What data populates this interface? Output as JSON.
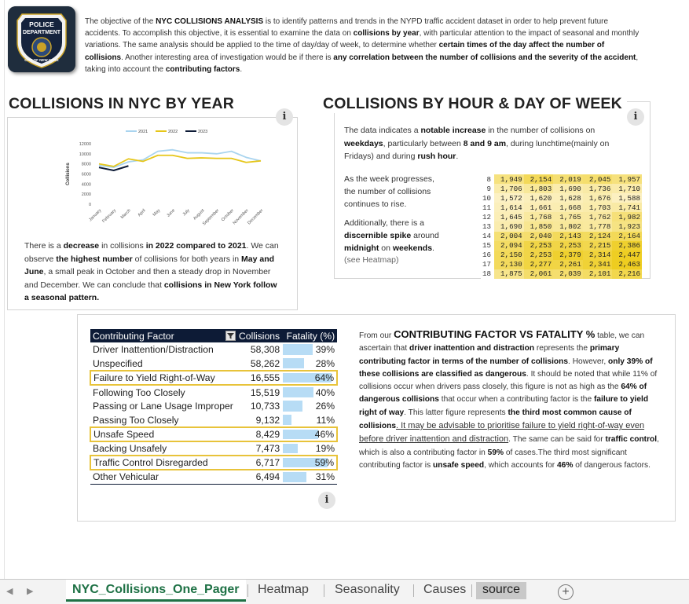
{
  "header": {
    "logo": {
      "line1": "POLICE",
      "line2": "DEPARTMENT",
      "line3": "CITY OF NEW YORK"
    },
    "intro_parts": [
      {
        "t": "The objective of the ",
        "b": false
      },
      {
        "t": "NYC COLLISIONS ANALYSIS",
        "b": true
      },
      {
        "t": " is to identify patterns and trends in the NYPD traffic accident dataset in order to help prevent future accidents. To accomplish this objective, it is essential to examine the data on ",
        "b": false
      },
      {
        "t": "collisions by year",
        "b": true
      },
      {
        "t": ", with particular attention to the impact of seasonal and monthly variations. The same analysis should be applied to the time of day/day of week, to determine whether ",
        "b": false
      },
      {
        "t": "certain times of the day affect the number of collisions",
        "b": true
      },
      {
        "t": ". Another interesting area of investigation would be if there is ",
        "b": false
      },
      {
        "t": "any correlation between the number of collisions and the severity of the accident",
        "b": true
      },
      {
        "t": ", taking into account the ",
        "b": false
      },
      {
        "t": "contributing factors",
        "b": true
      },
      {
        "t": ".",
        "b": false
      }
    ]
  },
  "year_section": {
    "title": "COLLISIONS IN NYC BY YEAR",
    "info": "i",
    "text_parts": [
      {
        "t": "There is a ",
        "b": false
      },
      {
        "t": "decrease",
        "b": true
      },
      {
        "t": " in collisions ",
        "b": false
      },
      {
        "t": "in 2022 compared to 2021",
        "b": true
      },
      {
        "t": ". We can observe ",
        "b": false
      },
      {
        "t": "the highest number",
        "b": true
      },
      {
        "t": " of collisions for both years in ",
        "b": false
      },
      {
        "t": "May and June",
        "b": true
      },
      {
        "t": ", a small peak in October and then a steady drop in November and December. We can conclude that ",
        "b": false
      },
      {
        "t": "collisions in New York follow a seasonal pattern.",
        "b": true
      }
    ]
  },
  "chart_data": {
    "type": "line",
    "title": "",
    "xlabel": "",
    "ylabel": "Collisions",
    "ylim": [
      0,
      12000
    ],
    "yticks": [
      "12000",
      "10000",
      "8000",
      "6000",
      "4000",
      "2000",
      "0"
    ],
    "categories": [
      "January",
      "February",
      "March",
      "April",
      "May",
      "June",
      "July",
      "August",
      "September",
      "October",
      "November",
      "December"
    ],
    "legend_position": "top",
    "series": [
      {
        "name": "2021",
        "color": "#a9d4ef",
        "values": [
          7700,
          7300,
          8400,
          8800,
          10500,
          10800,
          10200,
          10200,
          10000,
          10500,
          9300,
          8600
        ]
      },
      {
        "name": "2022",
        "color": "#e6c619",
        "values": [
          8000,
          7500,
          9000,
          8500,
          9700,
          9700,
          9100,
          9200,
          9100,
          9100,
          8300,
          8600
        ]
      },
      {
        "name": "2023",
        "color": "#0d1b36",
        "values": [
          7300,
          6700,
          7600,
          null,
          null,
          null,
          null,
          null,
          null,
          null,
          null,
          null
        ]
      }
    ]
  },
  "hour_section": {
    "title": "COLLISIONS BY HOUR & DAY OF WEEK",
    "info": "i",
    "text1_parts": [
      {
        "t": "The data indicates a ",
        "b": false
      },
      {
        "t": "notable increase",
        "b": true
      },
      {
        "t": " in the number of collisions on ",
        "b": false
      },
      {
        "t": "weekdays",
        "b": true
      },
      {
        "t": ", particularly between ",
        "b": false
      },
      {
        "t": "8 and 9 am",
        "b": true
      },
      {
        "t": ", during lunchtime(mainly on Fridays) and during ",
        "b": false
      },
      {
        "t": "rush hour",
        "b": true
      },
      {
        "t": ".",
        "b": false
      }
    ],
    "text2": "As the week progresses, the number of collisions continues to rise.",
    "text3_parts": [
      {
        "t": "Additionally, there is a ",
        "b": false
      },
      {
        "t": "discernible spike",
        "b": true
      },
      {
        "t": " around ",
        "b": false
      },
      {
        "t": "midnight",
        "b": true
      },
      {
        "t": " on ",
        "b": false
      },
      {
        "t": "weekends",
        "b": true
      },
      {
        "t": ".",
        "b": false
      }
    ],
    "see_heatmap": "(see Heatmap)",
    "heatmap": {
      "hours": [
        "8",
        "9",
        "10",
        "11",
        "12",
        "13",
        "14",
        "15",
        "16",
        "17",
        "18"
      ],
      "rows": [
        [
          "1,949",
          "2,154",
          "2,019",
          "2,045",
          "1,957"
        ],
        [
          "1,706",
          "1,803",
          "1,690",
          "1,736",
          "1,710"
        ],
        [
          "1,572",
          "1,620",
          "1,628",
          "1,676",
          "1,588"
        ],
        [
          "1,614",
          "1,661",
          "1,668",
          "1,703",
          "1,741"
        ],
        [
          "1,645",
          "1,768",
          "1,765",
          "1,762",
          "1,982"
        ],
        [
          "1,690",
          "1,850",
          "1,802",
          "1,778",
          "1,923"
        ],
        [
          "2,004",
          "2,040",
          "2,143",
          "2,124",
          "2,164"
        ],
        [
          "2,094",
          "2,253",
          "2,253",
          "2,215",
          "2,386"
        ],
        [
          "2,150",
          "2,253",
          "2,379",
          "2,314",
          "2,447"
        ],
        [
          "2,130",
          "2,277",
          "2,261",
          "2,341",
          "2,463"
        ],
        [
          "1,875",
          "2,061",
          "2,039",
          "2,101",
          "2,216"
        ]
      ]
    }
  },
  "factor_section": {
    "info": "i",
    "filter_icon": "filter-icon",
    "headers": {
      "factor": "Contributing Factor",
      "collisions": "Collisions",
      "fatality": "Fatality (%)"
    },
    "rows": [
      {
        "factor": "Driver Inattention/Distraction",
        "collisions": "58,308",
        "fatality": "39%",
        "pct": 39,
        "hl": false
      },
      {
        "factor": "Unspecified",
        "collisions": "58,262",
        "fatality": "28%",
        "pct": 28,
        "hl": false
      },
      {
        "factor": "Failure to Yield Right-of-Way",
        "collisions": "16,555",
        "fatality": "64%",
        "pct": 64,
        "hl": true
      },
      {
        "factor": "Following Too Closely",
        "collisions": "15,519",
        "fatality": "40%",
        "pct": 40,
        "hl": false
      },
      {
        "factor": "Passing or Lane Usage Improper",
        "collisions": "10,733",
        "fatality": "26%",
        "pct": 26,
        "hl": false
      },
      {
        "factor": "Passing Too Closely",
        "collisions": "9,132",
        "fatality": "11%",
        "pct": 11,
        "hl": false
      },
      {
        "factor": "Unsafe Speed",
        "collisions": "8,429",
        "fatality": "46%",
        "pct": 46,
        "hl": true
      },
      {
        "factor": "Backing Unsafely",
        "collisions": "7,473",
        "fatality": "19%",
        "pct": 19,
        "hl": false
      },
      {
        "factor": "Traffic Control Disregarded",
        "collisions": "6,717",
        "fatality": "59%",
        "pct": 59,
        "hl": true
      },
      {
        "factor": "Other Vehicular",
        "collisions": "6,494",
        "fatality": "31%",
        "pct": 31,
        "hl": false
      }
    ],
    "text_parts": [
      {
        "t": "From our ",
        "s": "n"
      },
      {
        "t": "CONTRIBUTING FACTOR VS FATALITY %",
        "s": "big"
      },
      {
        "t": " table, we can ascertain that ",
        "s": "n"
      },
      {
        "t": "driver inattention and distraction",
        "s": "b"
      },
      {
        "t": " represents the ",
        "s": "n"
      },
      {
        "t": "primary contributing factor in terms of the number of collisions",
        "s": "b"
      },
      {
        "t": ". However, ",
        "s": "n"
      },
      {
        "t": "only 39% of these collisions are classified as dangerous",
        "s": "b"
      },
      {
        "t": ". It should be noted that while 11% of collisions occur when drivers pass closely, this figure is not as high as the ",
        "s": "n"
      },
      {
        "t": "64% of dangerous collisions",
        "s": "b"
      },
      {
        "t": " that occur when a contributing factor is the ",
        "s": "n"
      },
      {
        "t": "failure to yield right of way",
        "s": "b"
      },
      {
        "t": ". This latter figure represents ",
        "s": "n"
      },
      {
        "t": "the third most common cause of collisions",
        "s": "b"
      },
      {
        "t": ". It may be advisable to prioritise failure to yield right-of-way even before driver inattention and distraction",
        "s": "u"
      },
      {
        "t": ".  The same can be said for ",
        "s": "n"
      },
      {
        "t": "traffic control",
        "s": "b"
      },
      {
        "t": ", which is also a contributing factor in ",
        "s": "n"
      },
      {
        "t": "59%",
        "s": "b"
      },
      {
        "t": " of cases.The third most significant contributing factor is ",
        "s": "n"
      },
      {
        "t": "unsafe speed",
        "s": "b"
      },
      {
        "t": ", which accounts for ",
        "s": "n"
      },
      {
        "t": "46%",
        "s": "b"
      },
      {
        "t": " of dangerous factors.",
        "s": "n"
      }
    ]
  },
  "tabs": {
    "items": [
      {
        "label": "NYC_Collisions_One_Pager",
        "active": true
      },
      {
        "label": "Heatmap",
        "active": false
      },
      {
        "label": "Seasonality",
        "active": false
      },
      {
        "label": "Causes",
        "active": false
      },
      {
        "label": "source",
        "active": false
      }
    ],
    "add": "+",
    "nav_prev": "◀",
    "nav_next": "▶"
  },
  "colors": {
    "navy": "#0d1b36",
    "gold": "#e8c33a",
    "light_blue": "#a9d4ef",
    "excel_green": "#1e7145"
  }
}
